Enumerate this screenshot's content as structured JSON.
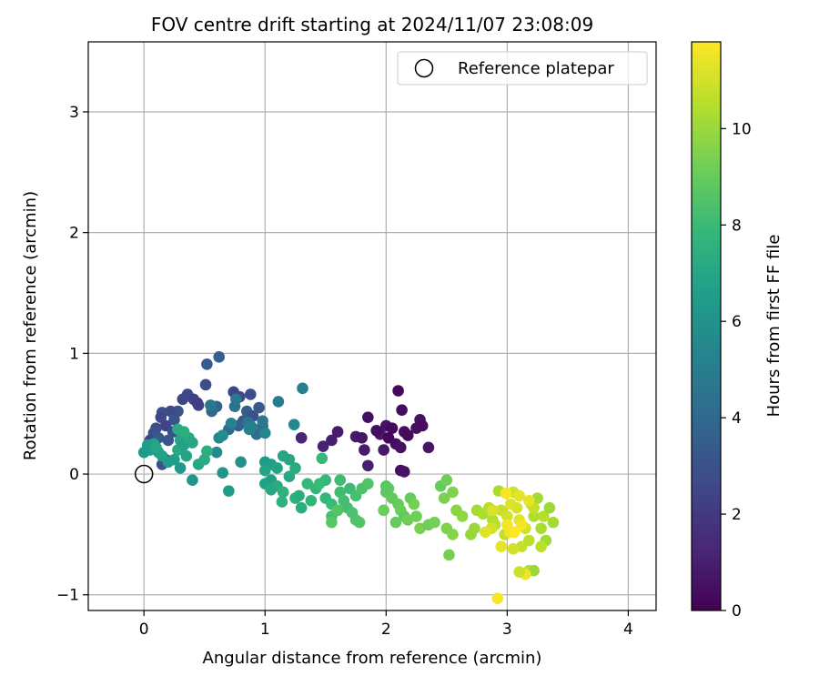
{
  "chart_data": {
    "type": "scatter",
    "title": "FOV centre drift starting at 2024/11/07 23:08:09",
    "xlabel": "Angular distance from reference (arcmin)",
    "ylabel": "Rotation from reference (arcmin)",
    "xlim": [
      -0.46,
      4.23
    ],
    "ylim": [
      -1.13,
      3.58
    ],
    "xticks": [
      0,
      1,
      2,
      3,
      4
    ],
    "yticks": [
      -1,
      0,
      1,
      2,
      3
    ],
    "grid": true,
    "legend": {
      "placement": "upper right",
      "entries": [
        "Reference platepar"
      ]
    },
    "reference": {
      "name": "Reference platepar",
      "x": 0.0,
      "y": 0.0
    },
    "colorbar": {
      "label": "Hours from first FF file",
      "range": [
        0,
        11.8
      ],
      "ticks": [
        0,
        2,
        4,
        6,
        8,
        10
      ],
      "colormap": [
        "#440154",
        "#482878",
        "#3e4989",
        "#31688e",
        "#26828e",
        "#1f9e89",
        "#35b779",
        "#6ece58",
        "#b5de2b",
        "#fde725"
      ]
    },
    "points": [
      [
        2.1,
        0.69,
        0.3
      ],
      [
        2.13,
        0.53,
        0.4
      ],
      [
        1.85,
        0.47,
        0.5
      ],
      [
        2.0,
        0.4,
        0.6
      ],
      [
        2.05,
        0.38,
        0.3
      ],
      [
        2.15,
        0.35,
        0.5
      ],
      [
        1.95,
        0.33,
        0.7
      ],
      [
        2.02,
        0.3,
        0.2
      ],
      [
        2.08,
        0.25,
        0.4
      ],
      [
        2.12,
        0.22,
        0.6
      ],
      [
        1.98,
        0.2,
        0.8
      ],
      [
        2.18,
        0.32,
        0.3
      ],
      [
        2.25,
        0.38,
        0.5
      ],
      [
        2.28,
        0.45,
        0.6
      ],
      [
        2.3,
        0.4,
        0.4
      ],
      [
        2.35,
        0.22,
        0.7
      ],
      [
        1.6,
        0.35,
        0.9
      ],
      [
        1.55,
        0.28,
        1.0
      ],
      [
        1.48,
        0.23,
        1.1
      ],
      [
        1.75,
        0.31,
        0.8
      ],
      [
        1.82,
        0.2,
        0.9
      ],
      [
        1.8,
        0.3,
        0.7
      ],
      [
        1.85,
        0.07,
        1.0
      ],
      [
        2.12,
        0.03,
        0.5
      ],
      [
        2.15,
        0.02,
        0.6
      ],
      [
        1.3,
        0.3,
        1.2
      ],
      [
        1.92,
        0.36,
        0.4
      ],
      [
        0.62,
        0.97,
        3.6
      ],
      [
        0.52,
        0.91,
        3.4
      ],
      [
        0.51,
        0.74,
        2.8
      ],
      [
        0.36,
        0.66,
        2.6
      ],
      [
        0.41,
        0.62,
        2.3
      ],
      [
        0.32,
        0.62,
        2.5
      ],
      [
        0.45,
        0.57,
        2.4
      ],
      [
        0.44,
        0.59,
        2.2
      ],
      [
        0.28,
        0.52,
        3.0
      ],
      [
        0.22,
        0.52,
        2.7
      ],
      [
        0.15,
        0.51,
        2.9
      ],
      [
        0.25,
        0.45,
        3.1
      ],
      [
        0.14,
        0.47,
        2.6
      ],
      [
        0.18,
        0.4,
        2.4
      ],
      [
        0.1,
        0.38,
        2.8
      ],
      [
        0.08,
        0.34,
        3.0
      ],
      [
        0.05,
        0.28,
        2.5
      ],
      [
        0.12,
        0.3,
        3.2
      ],
      [
        0.24,
        0.35,
        2.9
      ],
      [
        0.2,
        0.28,
        3.1
      ],
      [
        0.6,
        0.56,
        3.8
      ],
      [
        0.56,
        0.52,
        4.0
      ],
      [
        0.74,
        0.68,
        2.5
      ],
      [
        0.79,
        0.64,
        2.7
      ],
      [
        0.88,
        0.66,
        2.8
      ],
      [
        0.95,
        0.55,
        3.3
      ],
      [
        0.85,
        0.52,
        3.5
      ],
      [
        0.9,
        0.48,
        3.0
      ],
      [
        0.82,
        0.44,
        3.2
      ],
      [
        0.78,
        0.4,
        3.6
      ],
      [
        0.7,
        0.37,
        3.9
      ],
      [
        0.98,
        0.4,
        4.1
      ],
      [
        0.93,
        0.33,
        4.3
      ],
      [
        0.15,
        0.08,
        3.0
      ],
      [
        0.18,
        0.12,
        2.8
      ],
      [
        1.31,
        0.71,
        5.1
      ],
      [
        1.11,
        0.6,
        4.9
      ],
      [
        0.76,
        0.62,
        4.8
      ],
      [
        0.75,
        0.56,
        4.5
      ],
      [
        0.55,
        0.57,
        4.7
      ],
      [
        0.86,
        0.43,
        4.6
      ],
      [
        0.98,
        0.44,
        4.8
      ],
      [
        0.89,
        0.39,
        5.0
      ],
      [
        0.72,
        0.42,
        5.3
      ],
      [
        0.62,
        0.3,
        5.5
      ],
      [
        0.65,
        0.32,
        5.7
      ],
      [
        0.87,
        0.37,
        5.2
      ],
      [
        1.0,
        0.34,
        5.4
      ],
      [
        1.24,
        0.41,
        5.6
      ],
      [
        0.6,
        0.18,
        5.6
      ],
      [
        0.65,
        0.01,
        6.2
      ],
      [
        0.7,
        -0.14,
        6.4
      ],
      [
        0.8,
        0.1,
        6.0
      ],
      [
        0.4,
        -0.05,
        6.2
      ],
      [
        0.3,
        0.05,
        6.4
      ],
      [
        0.25,
        0.12,
        6.6
      ],
      [
        0.2,
        0.1,
        6.5
      ],
      [
        0.05,
        0.2,
        6.6
      ],
      [
        0.08,
        0.25,
        6.8
      ],
      [
        0.12,
        0.18,
        6.4
      ],
      [
        0.15,
        0.15,
        6.7
      ],
      [
        0.03,
        0.24,
        6.5
      ],
      [
        0.0,
        0.18,
        6.3
      ],
      [
        0.1,
        0.22,
        7.0
      ],
      [
        0.3,
        0.28,
        6.9
      ],
      [
        0.28,
        0.2,
        7.1
      ],
      [
        0.33,
        0.24,
        6.8
      ],
      [
        0.37,
        0.3,
        7.2
      ],
      [
        0.4,
        0.26,
        7.0
      ],
      [
        0.35,
        0.15,
        6.9
      ],
      [
        0.45,
        0.08,
        7.1
      ],
      [
        0.5,
        0.12,
        7.3
      ],
      [
        0.52,
        0.19,
        7.4
      ],
      [
        0.28,
        0.37,
        7.3
      ],
      [
        0.33,
        0.35,
        7.4
      ],
      [
        1.0,
        0.1,
        6.4
      ],
      [
        1.05,
        0.08,
        6.6
      ],
      [
        1.1,
        0.05,
        6.8
      ],
      [
        1.15,
        0.15,
        6.9
      ],
      [
        1.2,
        0.12,
        7.0
      ],
      [
        1.25,
        0.05,
        7.2
      ],
      [
        1.05,
        -0.05,
        6.5
      ],
      [
        1.0,
        -0.08,
        6.7
      ],
      [
        1.2,
        -0.02,
        7.1
      ],
      [
        1.1,
        -0.1,
        7.3
      ],
      [
        1.15,
        -0.15,
        7.5
      ],
      [
        1.25,
        -0.2,
        7.6
      ],
      [
        1.3,
        -0.28,
        7.4
      ],
      [
        1.38,
        -0.22,
        7.7
      ],
      [
        1.42,
        -0.12,
        7.8
      ],
      [
        1.35,
        -0.08,
        7.9
      ],
      [
        1.47,
        0.13,
        7.9
      ],
      [
        1.14,
        -0.23,
        7.6
      ],
      [
        1.28,
        -0.18,
        7.3
      ],
      [
        1.05,
        -0.13,
        7.1
      ],
      [
        1.0,
        0.03,
        6.9
      ],
      [
        1.5,
        -0.2,
        7.8
      ],
      [
        1.55,
        -0.25,
        8.0
      ],
      [
        1.62,
        -0.15,
        8.1
      ],
      [
        1.65,
        -0.22,
        8.2
      ],
      [
        1.7,
        -0.12,
        8.0
      ],
      [
        1.75,
        -0.18,
        8.3
      ],
      [
        1.8,
        -0.12,
        8.4
      ],
      [
        1.85,
        -0.08,
        8.5
      ],
      [
        1.68,
        -0.28,
        8.2
      ],
      [
        1.72,
        -0.32,
        8.4
      ],
      [
        1.78,
        -0.4,
        8.6
      ],
      [
        1.75,
        -0.38,
        8.5
      ],
      [
        1.55,
        -0.35,
        8.3
      ],
      [
        1.6,
        -0.3,
        8.6
      ],
      [
        1.55,
        -0.4,
        8.7
      ],
      [
        1.62,
        -0.05,
        8.1
      ],
      [
        1.5,
        -0.05,
        7.9
      ],
      [
        1.45,
        -0.08,
        8.0
      ],
      [
        2.0,
        -0.15,
        8.8
      ],
      [
        2.05,
        -0.2,
        8.9
      ],
      [
        2.1,
        -0.25,
        9.0
      ],
      [
        2.12,
        -0.3,
        9.1
      ],
      [
        2.15,
        -0.35,
        8.9
      ],
      [
        2.18,
        -0.38,
        9.2
      ],
      [
        2.08,
        -0.4,
        9.0
      ],
      [
        1.98,
        -0.3,
        9.1
      ],
      [
        2.0,
        -0.1,
        8.7
      ],
      [
        2.02,
        -0.12,
        8.8
      ],
      [
        2.2,
        -0.2,
        9.0
      ],
      [
        2.23,
        -0.25,
        9.3
      ],
      [
        2.25,
        -0.35,
        9.2
      ],
      [
        2.28,
        -0.45,
        9.4
      ],
      [
        2.35,
        -0.42,
        9.1
      ],
      [
        2.4,
        -0.4,
        9.3
      ],
      [
        2.45,
        -0.1,
        9.0
      ],
      [
        2.5,
        -0.05,
        9.2
      ],
      [
        2.48,
        -0.2,
        9.4
      ],
      [
        2.5,
        -0.45,
        9.5
      ],
      [
        2.55,
        -0.5,
        9.6
      ],
      [
        2.52,
        -0.67,
        9.3
      ],
      [
        2.55,
        -0.15,
        9.5
      ],
      [
        2.58,
        -0.3,
        9.7
      ],
      [
        2.63,
        -0.35,
        9.8
      ],
      [
        2.7,
        -0.5,
        9.9
      ],
      [
        2.73,
        -0.45,
        10.0
      ],
      [
        2.75,
        -0.3,
        10.2
      ],
      [
        2.8,
        -0.33,
        10.3
      ],
      [
        2.85,
        -0.28,
        10.5
      ],
      [
        2.88,
        -0.38,
        10.4
      ],
      [
        2.9,
        -0.42,
        10.6
      ],
      [
        2.93,
        -0.14,
        10.3
      ],
      [
        2.95,
        -0.3,
        10.8
      ],
      [
        2.98,
        -0.5,
        10.7
      ],
      [
        3.0,
        -0.35,
        11.0
      ],
      [
        3.03,
        -0.25,
        11.2
      ],
      [
        3.05,
        -0.15,
        10.9
      ],
      [
        3.08,
        -0.28,
        11.1
      ],
      [
        3.1,
        -0.38,
        11.3
      ],
      [
        3.12,
        -0.6,
        10.8
      ],
      [
        3.15,
        -0.45,
        11.0
      ],
      [
        3.18,
        -0.55,
        10.6
      ],
      [
        3.2,
        -0.25,
        10.7
      ],
      [
        3.22,
        -0.35,
        10.4
      ],
      [
        3.25,
        -0.2,
        10.2
      ],
      [
        3.28,
        -0.45,
        10.3
      ],
      [
        3.3,
        -0.35,
        10.5
      ],
      [
        3.32,
        -0.55,
        10.1
      ],
      [
        3.35,
        -0.28,
        10.0
      ],
      [
        3.38,
        -0.4,
        10.2
      ],
      [
        3.18,
        -0.8,
        10.5
      ],
      [
        3.22,
        -0.8,
        10.0
      ],
      [
        3.15,
        -0.83,
        11.5
      ],
      [
        3.1,
        -0.81,
        10.9
      ],
      [
        2.87,
        -0.45,
        11.0
      ],
      [
        2.82,
        -0.48,
        11.2
      ],
      [
        2.95,
        -0.6,
        11.4
      ],
      [
        3.02,
        -0.48,
        11.5
      ],
      [
        3.05,
        -0.62,
        11.0
      ],
      [
        3.12,
        -0.42,
        11.6
      ],
      [
        2.99,
        -0.16,
        11.7
      ],
      [
        3.1,
        -0.18,
        11.3
      ],
      [
        3.06,
        -0.48,
        11.8
      ],
      [
        3.0,
        -0.42,
        11.6
      ],
      [
        2.92,
        -1.03,
        11.7
      ],
      [
        2.88,
        -0.3,
        11.1
      ],
      [
        3.28,
        -0.6,
        10.6
      ],
      [
        3.22,
        -0.28,
        10.8
      ],
      [
        3.18,
        -0.22,
        11.4
      ]
    ]
  }
}
